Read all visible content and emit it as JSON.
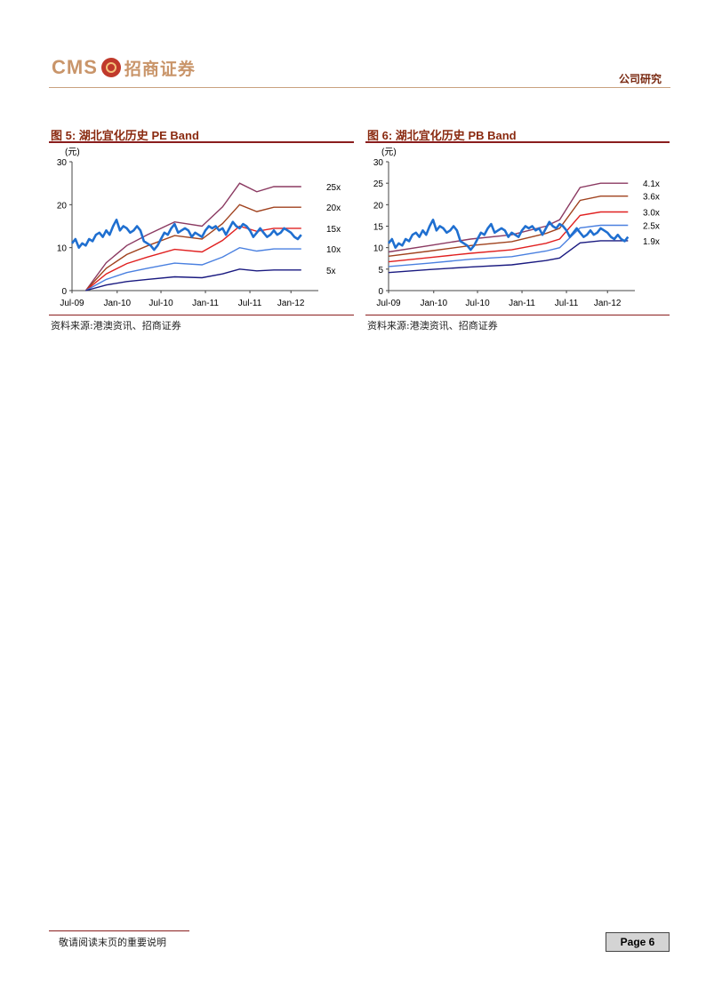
{
  "header": {
    "logo_latin": "CMS",
    "logo_cn": "招商证券",
    "section": "公司研究"
  },
  "figures": [
    {
      "title_prefix": "图 5:",
      "title_cn": "湖北宜化历史",
      "title_suffix": "PE Band",
      "source": "资料来源:港澳资讯、招商证券"
    },
    {
      "title_prefix": "图 6:",
      "title_cn": "湖北宜化历史",
      "title_suffix": "PB Band",
      "source": "资料来源:港澳资讯、招商证券"
    }
  ],
  "chart_data": [
    {
      "type": "line",
      "unit_label": "(元)",
      "ylim": [
        0,
        30
      ],
      "yticks": [
        0,
        10,
        20,
        30
      ],
      "x_tick_labels": [
        "Jul-09",
        "Jan-10",
        "Jul-10",
        "Jan-11",
        "Jul-11",
        "Jan-12"
      ],
      "xlim": [
        0,
        36
      ],
      "bands": [
        {
          "name": "25x",
          "color": "#8b3a62",
          "x": [
            2,
            5,
            8,
            11,
            15,
            19,
            22,
            24.5,
            27,
            29.5,
            33.5
          ],
          "values": [
            0,
            6.5,
            10.5,
            13,
            16,
            15,
            19.5,
            25,
            23,
            24.2,
            24.2
          ]
        },
        {
          "name": "20x",
          "color": "#a0421e",
          "x": [
            2,
            5,
            8,
            11,
            15,
            19,
            22,
            24.5,
            27,
            29.5,
            33.5
          ],
          "values": [
            0,
            5.2,
            8.4,
            10.4,
            12.8,
            12,
            15.6,
            20,
            18.4,
            19.4,
            19.4
          ]
        },
        {
          "name": "15x",
          "color": "#e02020",
          "x": [
            2,
            5,
            8,
            11,
            15,
            19,
            22,
            24.5,
            27,
            29.5,
            33.5
          ],
          "values": [
            0,
            3.9,
            6.3,
            7.8,
            9.6,
            9,
            11.7,
            15,
            13.8,
            14.5,
            14.5
          ]
        },
        {
          "name": "10x",
          "color": "#4a80e0",
          "x": [
            2,
            5,
            8,
            11,
            15,
            19,
            22,
            24.5,
            27,
            29.5,
            33.5
          ],
          "values": [
            0,
            2.6,
            4.2,
            5.2,
            6.4,
            6,
            7.8,
            10,
            9.2,
            9.7,
            9.7
          ]
        },
        {
          "name": "5x",
          "color": "#1a1a80",
          "x": [
            2,
            5,
            8,
            11,
            15,
            19,
            22,
            24.5,
            27,
            29.5,
            33.5
          ],
          "values": [
            0,
            1.3,
            2.1,
            2.6,
            3.2,
            3,
            3.9,
            5,
            4.6,
            4.8,
            4.8
          ]
        }
      ],
      "price": {
        "name": "price",
        "color": "#1f6fd0",
        "x": [
          0,
          0.5,
          1,
          1.5,
          2,
          2.5,
          3,
          3.5,
          4,
          4.5,
          5,
          5.5,
          6,
          6.5,
          7,
          7.5,
          8,
          8.5,
          9,
          9.5,
          10,
          10.5,
          11,
          11.5,
          12,
          12.5,
          13,
          13.5,
          14,
          14.5,
          15,
          15.5,
          16,
          16.5,
          17,
          17.5,
          18,
          18.5,
          19,
          19.5,
          20,
          20.5,
          21,
          21.5,
          22,
          22.5,
          23,
          23.5,
          24,
          24.5,
          25,
          25.5,
          26,
          26.5,
          27,
          27.5,
          28,
          28.5,
          29,
          29.5,
          30,
          30.5,
          31,
          31.5,
          32,
          32.5,
          33,
          33.5
        ],
        "values": [
          11,
          12,
          10,
          11,
          10.5,
          12,
          11.5,
          13,
          13.5,
          12.5,
          14,
          13,
          15,
          16.5,
          14,
          15,
          14.5,
          13.5,
          14,
          15,
          14,
          11.5,
          11,
          10.5,
          9.5,
          10.5,
          12,
          13.5,
          13,
          14.5,
          15.5,
          13.5,
          14,
          14.5,
          14,
          12.5,
          13.5,
          13,
          12.5,
          14,
          15,
          14.5,
          15,
          14,
          14.5,
          13,
          14.5,
          16,
          15,
          14.5,
          15.5,
          15,
          14,
          12.5,
          13.5,
          14.5,
          13.5,
          12.5,
          13,
          14,
          13,
          13.5,
          14.5,
          14,
          13.5,
          12.5,
          12,
          13
        ]
      }
    },
    {
      "type": "line",
      "unit_label": "(元)",
      "ylim": [
        0,
        30
      ],
      "yticks": [
        0,
        5,
        10,
        15,
        20,
        25,
        30
      ],
      "x_tick_labels": [
        "Jul-09",
        "Jan-10",
        "Jul-10",
        "Jan-11",
        "Jul-11",
        "Jan-12"
      ],
      "xlim": [
        0,
        36
      ],
      "bands": [
        {
          "name": "4.1x",
          "color": "#8b3a62",
          "x": [
            0,
            6,
            12,
            18,
            23,
            25,
            28,
            31,
            35
          ],
          "values": [
            9,
            10.5,
            12,
            13,
            15,
            16.5,
            24,
            25,
            25
          ]
        },
        {
          "name": "3.6x",
          "color": "#a0421e",
          "x": [
            0,
            6,
            12,
            18,
            23,
            25,
            28,
            31,
            35
          ],
          "values": [
            8,
            9.2,
            10.5,
            11.4,
            13.3,
            14.5,
            21,
            22,
            22
          ]
        },
        {
          "name": "3.0x",
          "color": "#e02020",
          "x": [
            0,
            6,
            12,
            18,
            23,
            25,
            28,
            31,
            35
          ],
          "values": [
            6.7,
            7.7,
            8.7,
            9.5,
            11,
            12,
            17.5,
            18.3,
            18.3
          ]
        },
        {
          "name": "2.5x",
          "color": "#4a80e0",
          "x": [
            0,
            6,
            12,
            18,
            23,
            25,
            28,
            31,
            35
          ],
          "values": [
            5.6,
            6.4,
            7.3,
            7.9,
            9.2,
            10,
            14.6,
            15.2,
            15.2
          ]
        },
        {
          "name": "1.9x",
          "color": "#1a1a80",
          "x": [
            0,
            6,
            12,
            18,
            23,
            25,
            28,
            31,
            35
          ],
          "values": [
            4.2,
            4.9,
            5.5,
            6,
            7,
            7.6,
            11.1,
            11.6,
            11.6
          ]
        }
      ],
      "price": {
        "name": "price",
        "color": "#1f6fd0",
        "x": [
          0,
          0.5,
          1,
          1.5,
          2,
          2.5,
          3,
          3.5,
          4,
          4.5,
          5,
          5.5,
          6,
          6.5,
          7,
          7.5,
          8,
          8.5,
          9,
          9.5,
          10,
          10.5,
          11,
          11.5,
          12,
          12.5,
          13,
          13.5,
          14,
          14.5,
          15,
          15.5,
          16,
          16.5,
          17,
          17.5,
          18,
          18.5,
          19,
          19.5,
          20,
          20.5,
          21,
          21.5,
          22,
          22.5,
          23,
          23.5,
          24,
          24.5,
          25,
          25.5,
          26,
          26.5,
          27,
          27.5,
          28,
          28.5,
          29,
          29.5,
          30,
          30.5,
          31,
          31.5,
          32,
          32.5,
          33,
          33.5,
          34,
          34.5,
          35
        ],
        "values": [
          11,
          12,
          10,
          11,
          10.5,
          12,
          11.5,
          13,
          13.5,
          12.5,
          14,
          13,
          15,
          16.5,
          14,
          15,
          14.5,
          13.5,
          14,
          15,
          14,
          11.5,
          11,
          10.5,
          9.5,
          10.5,
          12,
          13.5,
          13,
          14.5,
          15.5,
          13.5,
          14,
          14.5,
          14,
          12.5,
          13.5,
          13,
          12.5,
          14,
          15,
          14.5,
          15,
          14,
          14.5,
          13,
          14.5,
          16,
          15,
          14.5,
          15.5,
          15,
          14,
          12.5,
          13.5,
          14.5,
          13.5,
          12.5,
          13,
          14,
          13,
          13.5,
          14.5,
          14,
          13.5,
          12.5,
          12,
          13,
          12,
          11.5,
          12.5
        ]
      }
    }
  ],
  "footer": {
    "note": "敬请阅读末页的重要说明",
    "page": "Page 6"
  }
}
